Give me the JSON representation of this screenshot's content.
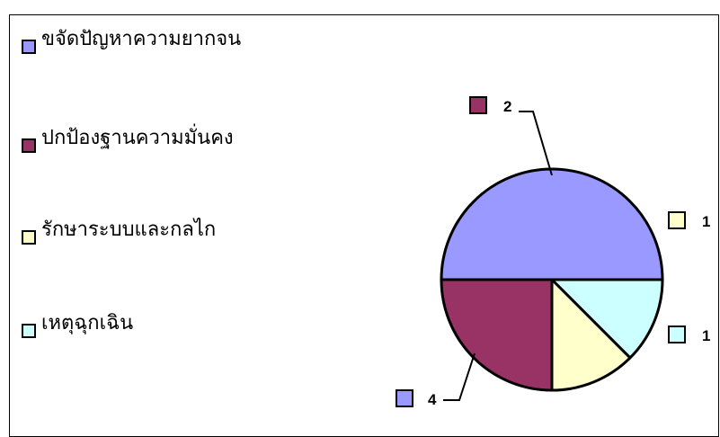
{
  "chart_data": {
    "type": "pie",
    "title": "",
    "categories": [
      "ขจัดปัญหาความยากจน",
      "ปกป้องฐานความมั่นคง",
      "รักษาระบบและกลไก",
      "เหตุฉุกเฉิน"
    ],
    "values": [
      4,
      2,
      1,
      1
    ],
    "colors": [
      "#9999ff",
      "#993366",
      "#ffffcc",
      "#ccffff"
    ],
    "legend_position": "left",
    "data_labels": [
      "4",
      "2",
      "1",
      "1"
    ]
  }
}
